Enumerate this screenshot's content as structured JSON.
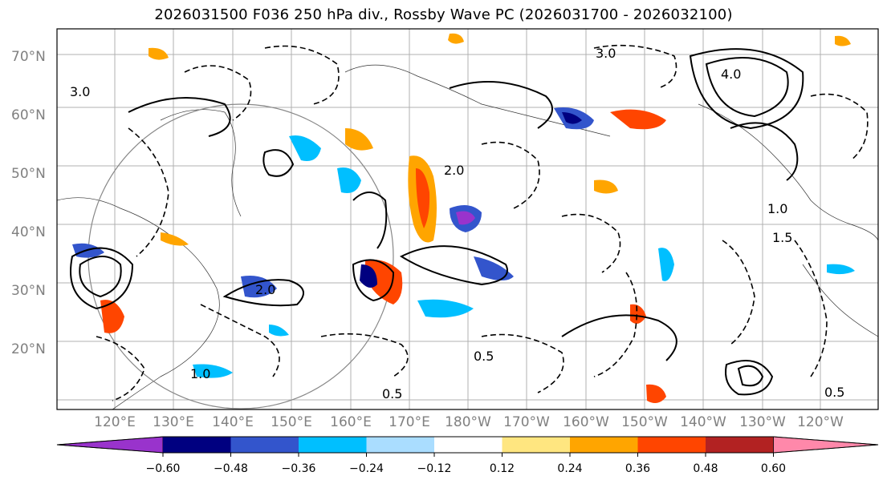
{
  "title": "2026031500 F036 250 hPa div., Rossby Wave PC (2026031700 - 2026032100)",
  "latitude_labels": [
    "70°N",
    "60°N",
    "50°N",
    "40°N",
    "30°N",
    "20°N"
  ],
  "longitude_labels": [
    "120°E",
    "130°E",
    "140°E",
    "150°E",
    "160°E",
    "170°E",
    "180°W",
    "170°W",
    "160°W",
    "150°W",
    "140°W",
    "130°W",
    "120°W"
  ],
  "colorbar": {
    "colors": [
      "#9933cc",
      "#000080",
      "#3355cc",
      "#00bfff",
      "#aaddff",
      "#ffffff",
      "#ffe680",
      "#ffa500",
      "#ff4500",
      "#b22222",
      "#ff88aa"
    ],
    "ticks": [
      "−0.60",
      "−0.48",
      "−0.36",
      "−0.24",
      "−0.12",
      "0.12",
      "0.24",
      "0.36",
      "0.48",
      "0.60"
    ]
  },
  "contour_labels": [
    "0.5",
    "1.0",
    "1.5",
    "2.0",
    "3.0",
    "4.0"
  ]
}
